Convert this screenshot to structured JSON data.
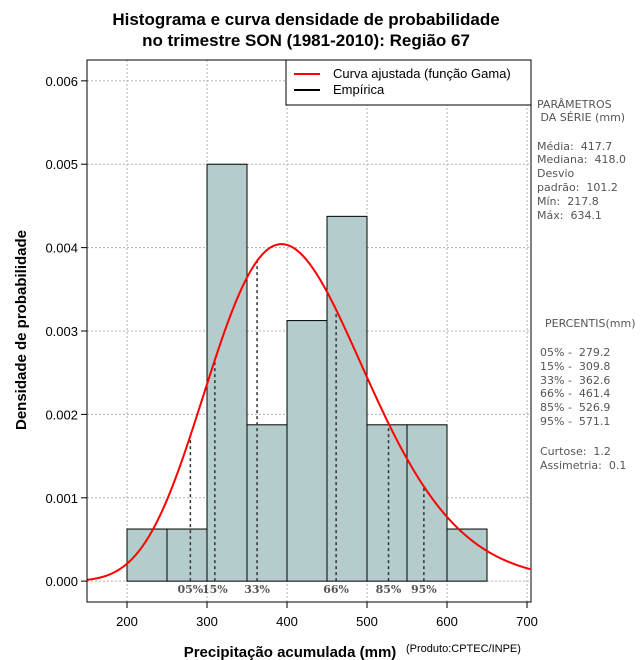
{
  "chart_data": {
    "type": "bar",
    "title_line1": "Histograma e curva densidade de probabilidade",
    "title_line2": "no trimestre SON (1981-2010): Região 67",
    "xlabel": "Precipitação acumulada (mm)",
    "ylabel": "Densidade de probabilidade",
    "credit": "(Produto:CPTEC/INPE)",
    "xlim": [
      150,
      705
    ],
    "ylim": [
      -0.00025,
      0.00625
    ],
    "x_ticks": [
      200,
      300,
      400,
      500,
      600,
      700
    ],
    "y_ticks": [
      0.0,
      0.001,
      0.002,
      0.003,
      0.004,
      0.005,
      0.006
    ],
    "y_tick_labels": [
      "0.000",
      "0.001",
      "0.002",
      "0.003",
      "0.004",
      "0.005",
      "0.006"
    ],
    "grid": true,
    "bar_color": "#b4cccc",
    "curve_color": "#ff0000",
    "bins": [
      {
        "start": 200,
        "end": 250,
        "density": 0.000625
      },
      {
        "start": 250,
        "end": 300,
        "density": 0.000625
      },
      {
        "start": 300,
        "end": 350,
        "density": 0.005
      },
      {
        "start": 350,
        "end": 400,
        "density": 0.001875
      },
      {
        "start": 400,
        "end": 450,
        "density": 0.003125
      },
      {
        "start": 450,
        "end": 500,
        "density": 0.004375
      },
      {
        "start": 500,
        "end": 550,
        "density": 0.001875
      },
      {
        "start": 550,
        "end": 600,
        "density": 0.001875
      },
      {
        "start": 600,
        "end": 650,
        "density": 0.000625
      }
    ],
    "gamma_fit": {
      "mean": 417.7,
      "sd": 101.2
    },
    "legend": {
      "position": "top-right",
      "entries": [
        {
          "label": "Curva ajustada (função Gama)",
          "color": "#ff0000"
        },
        {
          "label": "Empírica",
          "color": "#000000"
        }
      ]
    },
    "percentiles": [
      {
        "label": "05%",
        "value": 279.2
      },
      {
        "label": "15%",
        "value": 309.8
      },
      {
        "label": "33%",
        "value": 362.6
      },
      {
        "label": "66%",
        "value": 461.4
      },
      {
        "label": "85%",
        "value": 526.9
      },
      {
        "label": "95%",
        "value": 571.1
      }
    ]
  },
  "stats_panel": {
    "title_line1": "PARÂMETROS",
    "title_line2": " DA SÉRIE (mm)",
    "lines": [
      "Média:  417.7",
      "Mediana:  418.0",
      "Desvio",
      "padrão:  101.2",
      "Mín:  217.8",
      "Máx:  634.1"
    ]
  },
  "percentiles_panel": {
    "title": "PERCENTIS(mm)",
    "lines": [
      "05% -  279.2",
      "15% -  309.8",
      "33% -  362.6",
      "66% -  461.4",
      "85% -  526.9",
      "95% -  571.1"
    ],
    "extra_lines": [
      "Curtose:  1.2",
      "Assimetria:  0.1"
    ]
  }
}
